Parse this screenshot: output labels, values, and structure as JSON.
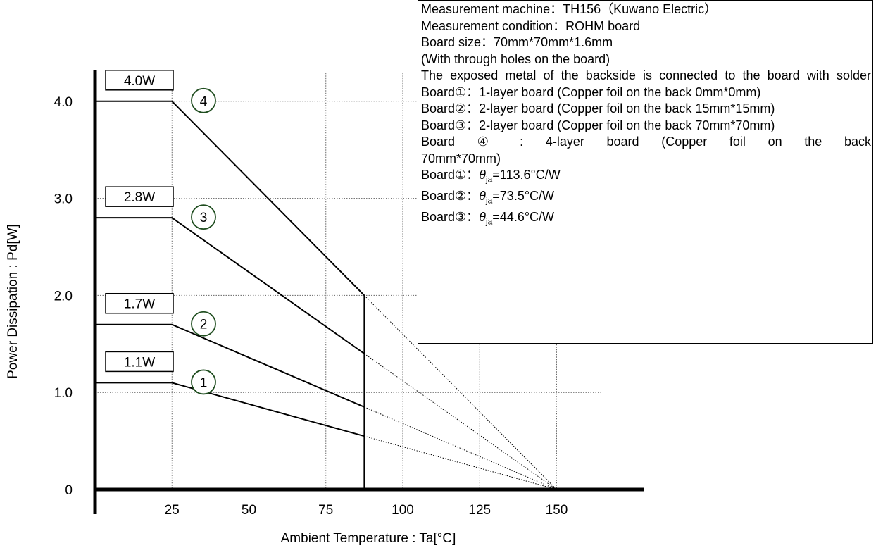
{
  "chart_data": {
    "type": "line",
    "xlabel": "Ambient Temperature : Ta[°C]",
    "ylabel": "Power Dissipation : Pd[W]",
    "xlim": [
      0,
      175
    ],
    "ylim": [
      0,
      4.0
    ],
    "x_ticks": [
      25,
      50,
      75,
      100,
      125,
      150
    ],
    "y_ticks": [
      0,
      1.0,
      2.0,
      3.0,
      4.0
    ],
    "y_tick_labels": [
      "0",
      "1.0",
      "2.0",
      "3.0",
      "4.0"
    ],
    "grid": true,
    "series": [
      {
        "name": "1",
        "value_label": "1.1W",
        "x": [
          0,
          25,
          87.5
        ],
        "y": [
          1.1,
          1.1,
          0.55
        ],
        "extension": {
          "x": [
            87.5,
            150
          ],
          "y": [
            0.55,
            0
          ]
        }
      },
      {
        "name": "2",
        "value_label": "1.7W",
        "x": [
          0,
          25,
          87.5
        ],
        "y": [
          1.7,
          1.7,
          0.85
        ],
        "extension": {
          "x": [
            87.5,
            150
          ],
          "y": [
            0.85,
            0
          ]
        }
      },
      {
        "name": "3",
        "value_label": "2.8W",
        "x": [
          0,
          25,
          87.5
        ],
        "y": [
          2.8,
          2.8,
          1.4
        ],
        "extension": {
          "x": [
            87.5,
            150
          ],
          "y": [
            1.4,
            0
          ]
        }
      },
      {
        "name": "4",
        "value_label": "4.0W",
        "x": [
          0,
          25,
          87.5
        ],
        "y": [
          4.0,
          4.0,
          2.0
        ],
        "extension": {
          "x": [
            87.5,
            150
          ],
          "y": [
            2.0,
            0
          ]
        }
      }
    ],
    "cutoff_x": 87.5
  },
  "info_box": {
    "lines": [
      "Measurement machine：TH156（Kuwano Electric）",
      "Measurement condition：ROHM board",
      "Board size：70mm*70mm*1.6mm",
      "(With through holes on the board)",
      "The exposed metal of the backside is connected to the board with solder",
      "Board①：1-layer board (Copper foil on the back 0mm*0mm)",
      "Board②：2-layer board (Copper foil on the back 15mm*15mm)",
      "Board③：2-layer board (Copper foil on the back 70mm*70mm)",
      "Board ④ : 4-layer board (Copper foil on the back 70mm*70mm)"
    ],
    "theta_lines": [
      {
        "prefix": "Board①：",
        "theta": "θ",
        "sub": "ja",
        "value": "=113.6°C/W"
      },
      {
        "prefix": "Board②：",
        "theta": "θ",
        "sub": "ja",
        "value": "=73.5°C/W"
      },
      {
        "prefix": "Board③：",
        "theta": "θ",
        "sub": "ja",
        "value": "=44.6°C/W"
      }
    ]
  }
}
